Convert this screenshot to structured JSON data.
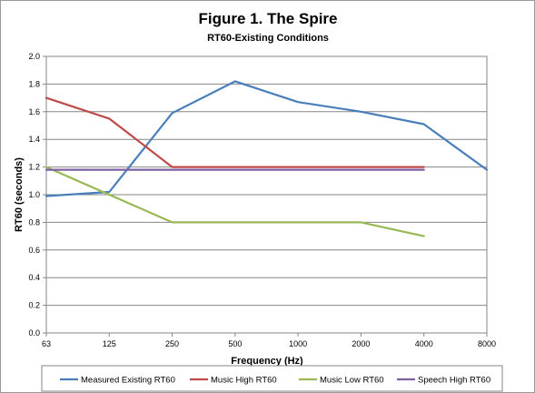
{
  "chart_data": {
    "type": "line",
    "title": "Figure 1. The Spire",
    "subtitle": "RT60-Existing Conditions",
    "xlabel": "Frequency (Hz)",
    "ylabel": "RT60 (seconds)",
    "categories": [
      "63",
      "125",
      "250",
      "500",
      "1000",
      "2000",
      "4000",
      "8000"
    ],
    "ylim": [
      0,
      2.0
    ],
    "yticks": [
      "0.0",
      "0.2",
      "0.4",
      "0.6",
      "0.8",
      "1.0",
      "1.2",
      "1.4",
      "1.6",
      "1.8",
      "2.0"
    ],
    "grid": true,
    "legend_position": "bottom",
    "series": [
      {
        "name": "Measured Existing RT60",
        "color": "#4a7ebb",
        "values": [
          0.99,
          1.02,
          1.59,
          1.82,
          1.67,
          1.6,
          1.51,
          1.18
        ]
      },
      {
        "name": "Music High RT60",
        "color": "#be4b48",
        "values": [
          1.7,
          1.55,
          1.2,
          1.2,
          1.2,
          1.2,
          1.2,
          null
        ]
      },
      {
        "name": "Music Low RT60",
        "color": "#98b954",
        "values": [
          1.2,
          1.0,
          0.8,
          0.8,
          0.8,
          0.8,
          0.7,
          null
        ]
      },
      {
        "name": "Speech High RT60",
        "color": "#7d60a0",
        "values": [
          1.18,
          1.18,
          1.18,
          1.18,
          1.18,
          1.18,
          1.18,
          null
        ]
      }
    ]
  }
}
